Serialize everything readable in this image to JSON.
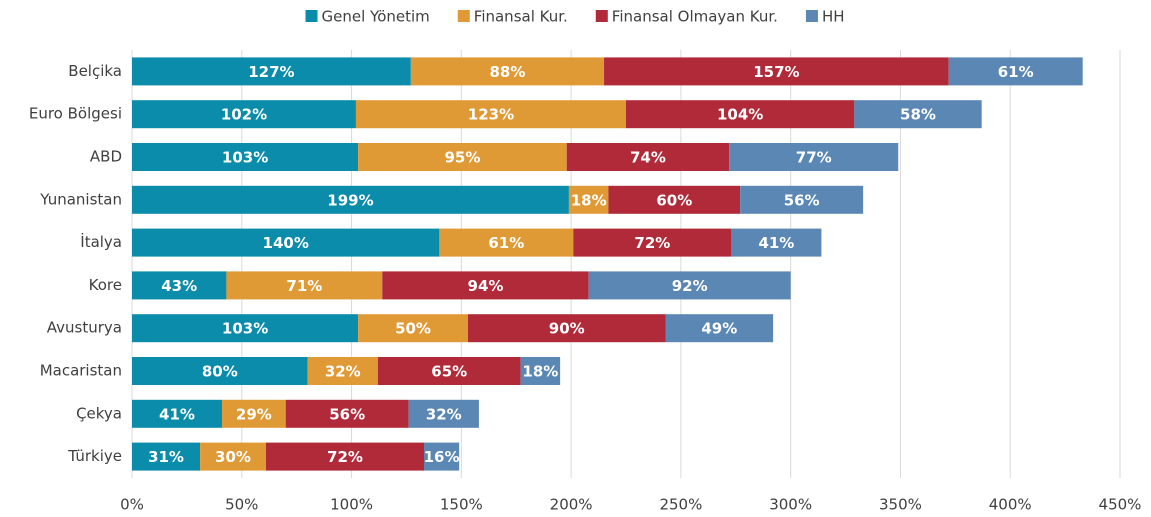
{
  "chart_data": {
    "type": "bar",
    "orientation": "horizontal",
    "stacked": true,
    "categories": [
      "Belçika",
      "Euro Bölgesi",
      "ABD",
      "Yunanistan",
      "İtalya",
      "Kore",
      "Avusturya",
      "Macaristan",
      "Çekya",
      "Türkiye"
    ],
    "series": [
      {
        "name": "Genel Yönetim",
        "color": "#0a8caa",
        "values": [
          127,
          102,
          103,
          199,
          140,
          43,
          103,
          80,
          41,
          31
        ],
        "value_labels": [
          "127%",
          "102%",
          "103%",
          "199%",
          "140%",
          "43%",
          "103%",
          "80%",
          "41%",
          "31%"
        ]
      },
      {
        "name": "Finansal Kur.",
        "color": "#e09a35",
        "values": [
          88,
          123,
          95,
          18,
          61,
          71,
          50,
          32,
          29,
          30
        ],
        "value_labels": [
          "88%",
          "123%",
          "95%",
          "18%",
          "61%",
          "71%",
          "50%",
          "32%",
          "29%",
          "30%"
        ]
      },
      {
        "name": "Finansal Olmayan Kur.",
        "color": "#b02a3a",
        "values": [
          157,
          104,
          74,
          60,
          72,
          94,
          90,
          65,
          56,
          72
        ],
        "value_labels": [
          "157%",
          "104%",
          "74%",
          "60%",
          "72%",
          "94%",
          "90%",
          "65%",
          "56%",
          "72%"
        ]
      },
      {
        "name": "HH",
        "color": "#5b87b5",
        "values": [
          61,
          58,
          77,
          56,
          41,
          92,
          49,
          18,
          32,
          16
        ],
        "value_labels": [
          "61%",
          "58%",
          "77%",
          "56%",
          "41%",
          "92%",
          "49%",
          "18%",
          "32%",
          "16%"
        ]
      }
    ],
    "xlim": [
      0,
      450
    ],
    "xticks": [
      {
        "value": 0,
        "label": "0%"
      },
      {
        "value": 50,
        "label": "50%"
      },
      {
        "value": 100,
        "label": "100%"
      },
      {
        "value": 150,
        "label": "150%"
      },
      {
        "value": 200,
        "label": "200%"
      },
      {
        "value": 250,
        "label": "250%"
      },
      {
        "value": 300,
        "label": "300%"
      },
      {
        "value": 350,
        "label": "350%"
      },
      {
        "value": 400,
        "label": "400%"
      },
      {
        "value": 450,
        "label": "450%"
      }
    ],
    "grid": true,
    "legend": "top"
  }
}
